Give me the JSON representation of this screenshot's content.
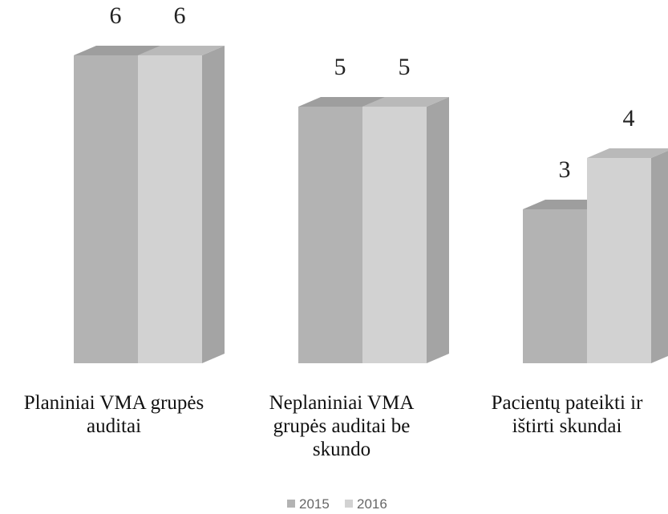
{
  "chart_data": {
    "type": "bar",
    "categories": [
      [
        "Planiniai VMA grupės",
        "auditai"
      ],
      [
        "Neplaniniai VMA",
        "grupės auditai be",
        "skundo"
      ],
      [
        "Pacientų pateikti ir",
        "ištirti skundai"
      ]
    ],
    "series": [
      {
        "name": "2015",
        "values": [
          6,
          5,
          3
        ],
        "color": "#b3b3b3"
      },
      {
        "name": "2016",
        "values": [
          6,
          5,
          4
        ],
        "color": "#d2d2d2"
      }
    ],
    "ylim": [
      0,
      6
    ],
    "grid": false,
    "legend_position": "bottom",
    "title": "",
    "xlabel": "",
    "ylabel": ""
  }
}
